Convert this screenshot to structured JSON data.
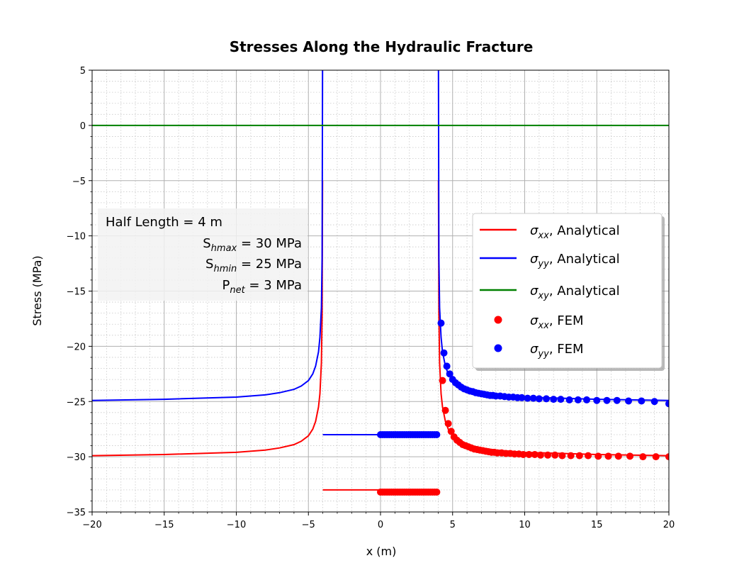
{
  "chart_data": {
    "type": "line",
    "title": "Stresses Along the Hydraulic Fracture",
    "xlabel": "x (m)",
    "ylabel": "Stress (MPa)",
    "xlim": [
      -20,
      20
    ],
    "ylim": [
      -35,
      5
    ],
    "xticks": [
      "−20",
      "−15",
      "−10",
      "−5",
      "0",
      "5",
      "10",
      "15",
      "20"
    ],
    "yticks": [
      "5",
      "0",
      "−5",
      "−10",
      "−15",
      "−20",
      "−25",
      "−30",
      "−35"
    ],
    "grid": "major and minor",
    "legend_position": "center-right",
    "legend": [
      {
        "sym": "σ",
        "sub": "xx",
        "suffix": ", Analytical",
        "color": "#ff0000",
        "marker": "line"
      },
      {
        "sym": "σ",
        "sub": "yy",
        "suffix": ", Analytical",
        "color": "#0000ff",
        "marker": "line"
      },
      {
        "sym": "σ",
        "sub": "xy",
        "suffix": ", Analytical",
        "color": "#008000",
        "marker": "line"
      },
      {
        "sym": "σ",
        "sub": "xx",
        "suffix": ", FEM",
        "color": "#ff0000",
        "marker": "dot"
      },
      {
        "sym": "σ",
        "sub": "yy",
        "suffix": ", FEM",
        "color": "#0000ff",
        "marker": "dot"
      }
    ],
    "annotation": [
      {
        "pre": "Half Length  =  4 m",
        "sub": "",
        "post": ""
      },
      {
        "pre": "S",
        "sub": "hmax",
        "post": " = 30 MPa"
      },
      {
        "pre": "S",
        "sub": "hmin",
        "post": " = 25 MPa"
      },
      {
        "pre": "P",
        "sub": "net",
        "post": " =   3 MPa"
      }
    ],
    "colors": {
      "sxx": "#ff0000",
      "syy": "#0000ff",
      "sxy": "#008000"
    },
    "series": [
      {
        "key": "sxx_analytical_left",
        "x": [
          -20,
          -15,
          -10,
          -8,
          -7,
          -6,
          -5.5,
          -5,
          -4.7,
          -4.5,
          -4.3,
          -4.2,
          -4.1,
          -4.05,
          -4.02
        ],
        "y": [
          -29.9,
          -29.8,
          -29.6,
          -29.4,
          -29.2,
          -28.9,
          -28.6,
          -28.1,
          -27.5,
          -26.8,
          -25.5,
          -24.3,
          -21.5,
          -17,
          -5
        ]
      },
      {
        "key": "syy_analytical_left",
        "x": [
          -20,
          -15,
          -10,
          -8,
          -7,
          -6,
          -5.5,
          -5,
          -4.7,
          -4.5,
          -4.3,
          -4.2,
          -4.1,
          -4.05,
          -4.02
        ],
        "y": [
          -24.9,
          -24.8,
          -24.6,
          -24.4,
          -24.2,
          -23.9,
          -23.6,
          -23.1,
          -22.5,
          -21.8,
          -20.5,
          -19.2,
          -16.5,
          -12,
          5
        ]
      },
      {
        "key": "sxx_analytical_crack",
        "x": [
          -4,
          4
        ],
        "y": [
          -33,
          -33
        ]
      },
      {
        "key": "syy_analytical_crack",
        "x": [
          -4,
          4
        ],
        "y": [
          -28,
          -28
        ]
      },
      {
        "key": "sxx_analytical_right",
        "x": [
          4.02,
          4.05,
          4.1,
          4.2,
          4.3,
          4.5,
          4.7,
          5,
          5.5,
          6,
          7,
          8,
          10,
          15,
          20
        ],
        "y": [
          -5,
          -17,
          -21.5,
          -24.3,
          -25.5,
          -26.8,
          -27.5,
          -28.1,
          -28.6,
          -28.9,
          -29.2,
          -29.4,
          -29.6,
          -29.8,
          -29.9
        ]
      },
      {
        "key": "syy_analytical_right",
        "x": [
          4.02,
          4.05,
          4.1,
          4.2,
          4.3,
          4.5,
          4.7,
          5,
          5.5,
          6,
          7,
          8,
          10,
          15,
          20
        ],
        "y": [
          5,
          -12,
          -16.5,
          -19.2,
          -20.5,
          -21.8,
          -22.5,
          -23.1,
          -23.6,
          -23.9,
          -24.2,
          -24.4,
          -24.6,
          -24.8,
          -24.9
        ]
      },
      {
        "key": "sxy_analytical",
        "x": [
          -20,
          20
        ],
        "y": [
          0,
          0
        ]
      },
      {
        "key": "sxx_fem",
        "x": [
          0,
          0.15,
          0.3,
          0.45,
          0.6,
          0.75,
          0.9,
          1.05,
          1.2,
          1.35,
          1.5,
          1.65,
          1.8,
          1.95,
          2.1,
          2.25,
          2.4,
          2.55,
          2.7,
          2.85,
          3.0,
          3.15,
          3.3,
          3.45,
          3.6,
          3.75,
          3.9,
          4.3,
          4.5,
          4.7,
          4.9,
          5.1,
          5.3,
          5.5,
          5.7,
          5.9,
          6.1,
          6.3,
          6.5,
          6.7,
          6.9,
          7.1,
          7.3,
          7.5,
          7.7,
          7.9,
          8.1,
          8.4,
          8.7,
          9.0,
          9.3,
          9.6,
          9.9,
          10.3,
          10.7,
          11.1,
          11.6,
          12.1,
          12.6,
          13.2,
          13.8,
          14.4,
          15.1,
          15.8,
          16.5,
          17.3,
          18.2,
          19.1,
          20
        ],
        "y": [
          -33.2,
          -33.2,
          -33.2,
          -33.2,
          -33.2,
          -33.2,
          -33.2,
          -33.2,
          -33.2,
          -33.2,
          -33.2,
          -33.2,
          -33.2,
          -33.2,
          -33.2,
          -33.2,
          -33.2,
          -33.2,
          -33.2,
          -33.2,
          -33.2,
          -33.2,
          -33.2,
          -33.2,
          -33.2,
          -33.2,
          -33.2,
          -23.1,
          -25.8,
          -27,
          -27.7,
          -28.2,
          -28.5,
          -28.7,
          -28.9,
          -29,
          -29.1,
          -29.2,
          -29.3,
          -29.35,
          -29.4,
          -29.45,
          -29.5,
          -29.55,
          -29.6,
          -29.6,
          -29.65,
          -29.65,
          -29.7,
          -29.7,
          -29.75,
          -29.75,
          -29.8,
          -29.8,
          -29.8,
          -29.85,
          -29.85,
          -29.85,
          -29.9,
          -29.9,
          -29.9,
          -29.9,
          -29.95,
          -29.95,
          -29.95,
          -29.95,
          -30,
          -30,
          -30
        ]
      },
      {
        "key": "syy_fem",
        "x": [
          0,
          0.15,
          0.3,
          0.45,
          0.6,
          0.75,
          0.9,
          1.05,
          1.2,
          1.35,
          1.5,
          1.65,
          1.8,
          1.95,
          2.1,
          2.25,
          2.4,
          2.55,
          2.7,
          2.85,
          3.0,
          3.15,
          3.3,
          3.45,
          3.6,
          3.75,
          3.9,
          4.2,
          4.4,
          4.6,
          4.8,
          5.0,
          5.2,
          5.4,
          5.6,
          5.8,
          6.0,
          6.2,
          6.4,
          6.6,
          6.8,
          7.0,
          7.2,
          7.4,
          7.6,
          7.8,
          8.0,
          8.3,
          8.6,
          8.9,
          9.2,
          9.5,
          9.8,
          10.2,
          10.6,
          11.0,
          11.5,
          12.0,
          12.5,
          13.1,
          13.7,
          14.3,
          15.0,
          15.7,
          16.4,
          17.2,
          18.1,
          19.0,
          20
        ],
        "y": [
          -28,
          -28,
          -28,
          -28,
          -28,
          -28,
          -28,
          -28,
          -28,
          -28,
          -28,
          -28,
          -28,
          -28,
          -28,
          -28,
          -28,
          -28,
          -28,
          -28,
          -28,
          -28,
          -28,
          -28,
          -28,
          -28,
          -28,
          -17.9,
          -20.6,
          -21.8,
          -22.5,
          -23,
          -23.3,
          -23.5,
          -23.7,
          -23.85,
          -23.95,
          -24.05,
          -24.1,
          -24.2,
          -24.25,
          -24.3,
          -24.35,
          -24.4,
          -24.45,
          -24.45,
          -24.5,
          -24.5,
          -24.55,
          -24.6,
          -24.6,
          -24.65,
          -24.65,
          -24.7,
          -24.7,
          -24.75,
          -24.75,
          -24.8,
          -24.8,
          -24.85,
          -24.85,
          -24.85,
          -24.9,
          -24.9,
          -24.9,
          -24.95,
          -24.95,
          -25,
          -25.2
        ]
      }
    ]
  }
}
